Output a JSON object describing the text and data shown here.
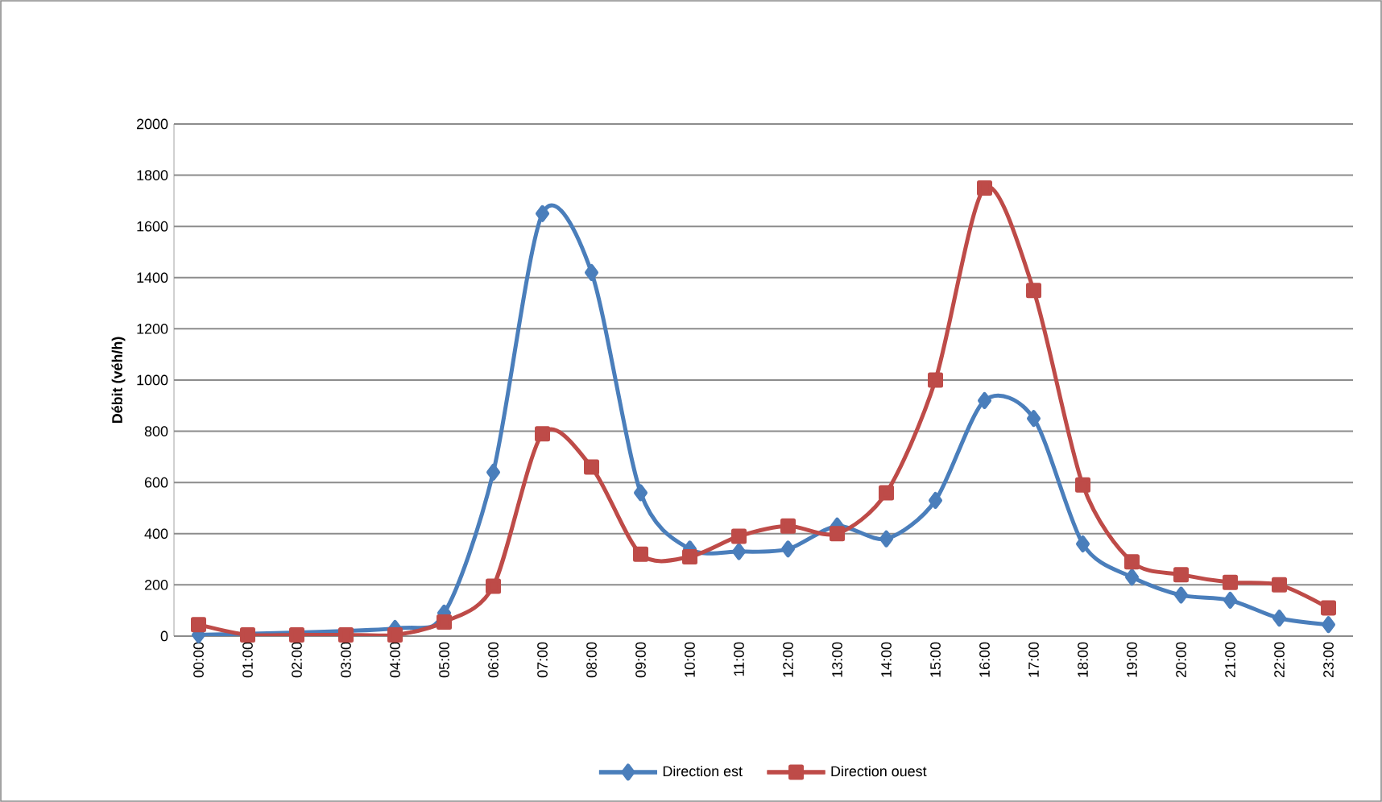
{
  "chart_data": {
    "type": "line",
    "ylabel": "Débit (véh/h)",
    "categories": [
      "00:00",
      "01:00",
      "02:00",
      "03:00",
      "04:00",
      "05:00",
      "06:00",
      "07:00",
      "08:00",
      "09:00",
      "10:00",
      "11:00",
      "12:00",
      "13:00",
      "14:00",
      "15:00",
      "16:00",
      "17:00",
      "18:00",
      "19:00",
      "20:00",
      "21:00",
      "22:00",
      "23:00"
    ],
    "series": [
      {
        "name": "Direction est",
        "color": "#4a7ebb",
        "marker": "diamond",
        "values": [
          5,
          null,
          null,
          null,
          30,
          90,
          640,
          1650,
          1420,
          560,
          340,
          330,
          340,
          430,
          380,
          530,
          920,
          850,
          360,
          230,
          160,
          140,
          70,
          45
        ]
      },
      {
        "name": "Direction ouest",
        "color": "#be4b48",
        "marker": "square",
        "values": [
          45,
          5,
          5,
          5,
          5,
          55,
          195,
          790,
          660,
          320,
          310,
          390,
          430,
          400,
          560,
          1000,
          1750,
          1350,
          590,
          290,
          240,
          210,
          200,
          110
        ]
      }
    ],
    "ylim": [
      0,
      2000
    ],
    "yticks": [
      0,
      200,
      400,
      600,
      800,
      1000,
      1200,
      1400,
      1600,
      1800,
      2000
    ],
    "grid": "y",
    "legend": "bottom",
    "line_style": "solid"
  }
}
